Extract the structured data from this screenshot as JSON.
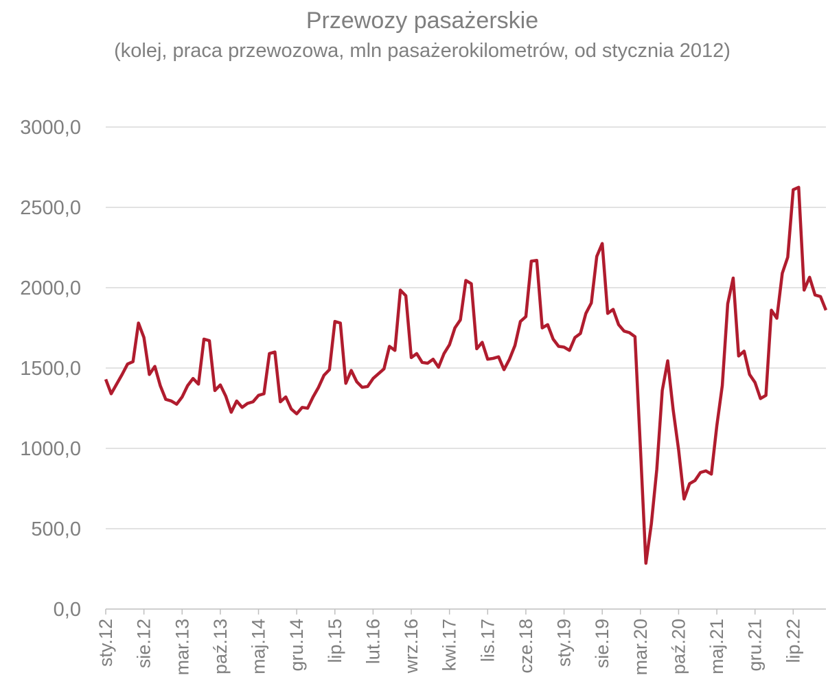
{
  "chart_data": {
    "type": "line",
    "title": "Przewozy pasażerskie",
    "subtitle": "(kolej, praca przewozowa, mln pasażerokilometrów, od stycznia 2012)",
    "categories": [
      "sty.12",
      null,
      null,
      null,
      null,
      null,
      null,
      "sie.12",
      null,
      null,
      null,
      null,
      null,
      null,
      "mar.13",
      null,
      null,
      null,
      null,
      null,
      null,
      "paź.13",
      null,
      null,
      null,
      null,
      null,
      null,
      "maj.14",
      null,
      null,
      null,
      null,
      null,
      null,
      "gru.14",
      null,
      null,
      null,
      null,
      null,
      null,
      "lip.15",
      null,
      null,
      null,
      null,
      null,
      null,
      "lut.16",
      null,
      null,
      null,
      null,
      null,
      null,
      "wrz.16",
      null,
      null,
      null,
      null,
      null,
      null,
      "kwi.17",
      null,
      null,
      null,
      null,
      null,
      null,
      "lis.17",
      null,
      null,
      null,
      null,
      null,
      null,
      "cze.18",
      null,
      null,
      null,
      null,
      null,
      null,
      "sty.19",
      null,
      null,
      null,
      null,
      null,
      null,
      "sie.19",
      null,
      null,
      null,
      null,
      null,
      null,
      "mar.20",
      null,
      null,
      null,
      null,
      null,
      null,
      "paź.20",
      null,
      null,
      null,
      null,
      null,
      null,
      "maj.21",
      null,
      null,
      null,
      null,
      null,
      null,
      "gru.21",
      null,
      null,
      null,
      null,
      null,
      null,
      "lip.22",
      null,
      null,
      null,
      null,
      null,
      null
    ],
    "series": [
      {
        "color": "#b01c2e",
        "values": [
          1430,
          1340,
          1400,
          1460,
          1525,
          1540,
          1780,
          1690,
          1460,
          1510,
          1390,
          1305,
          1295,
          1275,
          1320,
          1390,
          1435,
          1400,
          1680,
          1670,
          1360,
          1395,
          1325,
          1225,
          1295,
          1255,
          1280,
          1290,
          1330,
          1340,
          1590,
          1600,
          1290,
          1320,
          1245,
          1215,
          1255,
          1250,
          1320,
          1380,
          1455,
          1490,
          1790,
          1780,
          1405,
          1485,
          1415,
          1380,
          1385,
          1435,
          1465,
          1495,
          1635,
          1610,
          1985,
          1950,
          1565,
          1590,
          1535,
          1530,
          1555,
          1505,
          1590,
          1645,
          1750,
          1800,
          2045,
          2025,
          1620,
          1660,
          1555,
          1560,
          1570,
          1490,
          1555,
          1640,
          1790,
          1820,
          2165,
          2170,
          1750,
          1770,
          1680,
          1635,
          1630,
          1610,
          1690,
          1715,
          1840,
          1905,
          2195,
          2275,
          1840,
          1865,
          1770,
          1730,
          1720,
          1695,
          1000,
          285,
          530,
          870,
          1360,
          1545,
          1240,
          990,
          685,
          780,
          800,
          850,
          860,
          840,
          1140,
          1390,
          1900,
          2060,
          1575,
          1605,
          1460,
          1410,
          1310,
          1330,
          1860,
          1810,
          2090,
          2190,
          2610,
          2625,
          1985,
          2065,
          1955,
          1945,
          1860
        ]
      }
    ],
    "ylim": [
      0,
      3000
    ],
    "yticks": [
      {
        "value": 0,
        "label": "0,0"
      },
      {
        "value": 500,
        "label": "500,0"
      },
      {
        "value": 1000,
        "label": "1000,0"
      },
      {
        "value": 1500,
        "label": "1500,0"
      },
      {
        "value": 2000,
        "label": "2000,0"
      },
      {
        "value": 2500,
        "label": "2500,0"
      },
      {
        "value": 3000,
        "label": "3000,0"
      }
    ],
    "grid": true
  }
}
